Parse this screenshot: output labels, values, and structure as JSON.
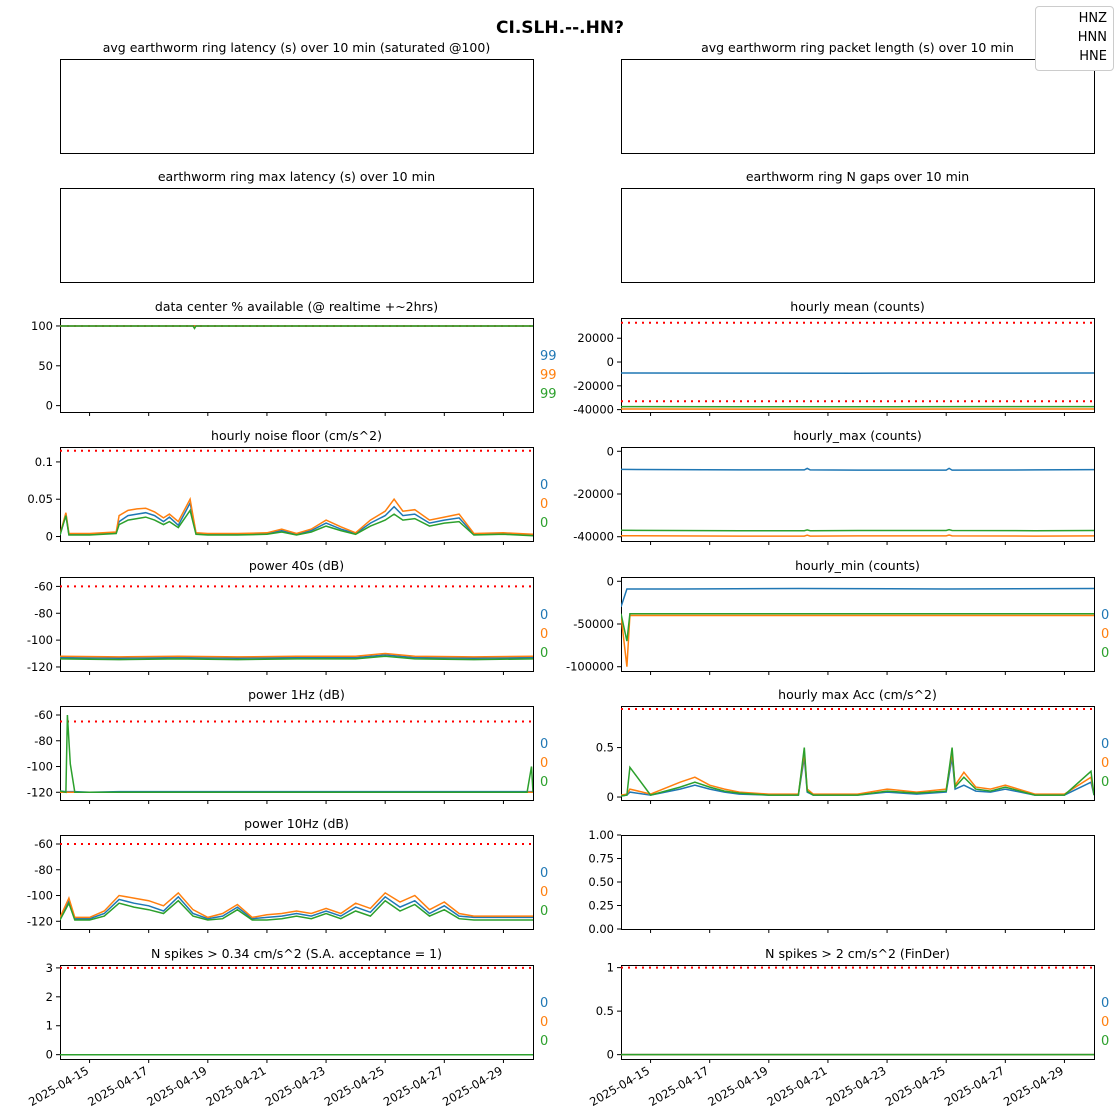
{
  "suptitle": "CI.SLH.--.HN?",
  "legend": [
    "HNZ",
    "HNN",
    "HNE"
  ],
  "colors": {
    "HNZ": "#1f77b4",
    "HNN": "#ff7f0e",
    "HNE": "#2ca02c",
    "threshold": "#ff0000"
  },
  "x_ticks": [
    "2025-04-15",
    "2025-04-17",
    "2025-04-19",
    "2025-04-21",
    "2025-04-23",
    "2025-04-25",
    "2025-04-27",
    "2025-04-29"
  ],
  "x_range": [
    "2025-04-14",
    "2025-04-30"
  ],
  "chart_data": [
    {
      "type": "line",
      "title": "avg earthworm ring latency (s)   over 10 min (saturated @100)",
      "empty": true,
      "series": []
    },
    {
      "type": "line",
      "title": "avg earthworm ring packet length (s)   over 10 min",
      "empty": true,
      "series": []
    },
    {
      "type": "line",
      "title": "earthworm ring max latency (s)   over 10 min",
      "empty": true,
      "series": []
    },
    {
      "type": "line",
      "title": "earthworm ring N gaps   over 10 min",
      "empty": true,
      "series": []
    },
    {
      "type": "line",
      "title": "data center % available (@ realtime +~2hrs)",
      "ylim": [
        -8,
        110
      ],
      "yticks": [
        0,
        50,
        100
      ],
      "thresholds": [
        100
      ],
      "side_labels": [
        "99",
        "99",
        "99"
      ],
      "x": [
        0,
        4.5,
        4.55,
        4.6,
        16
      ],
      "series": [
        {
          "name": "HNZ",
          "values": [
            100,
            100,
            100,
            100,
            100
          ]
        },
        {
          "name": "HNN",
          "values": [
            100,
            100,
            100,
            100,
            100
          ]
        },
        {
          "name": "HNE",
          "values": [
            100,
            100,
            97,
            100,
            100
          ]
        }
      ]
    },
    {
      "type": "line",
      "title": "hourly mean (counts)",
      "ylim": [
        -42000,
        37000
      ],
      "yticks": [
        20000,
        0,
        -20000,
        -40000
      ],
      "thresholds": [
        33000,
        -33000
      ],
      "x": [
        0,
        4,
        8,
        12,
        16
      ],
      "series": [
        {
          "name": "HNZ",
          "values": [
            -9200,
            -9300,
            -9400,
            -9300,
            -9200
          ]
        },
        {
          "name": "HNN",
          "values": [
            -39500,
            -39600,
            -39600,
            -39500,
            -39500
          ]
        },
        {
          "name": "HNE",
          "values": [
            -37500,
            -37600,
            -37600,
            -37500,
            -37500
          ]
        }
      ]
    },
    {
      "type": "line",
      "title": "hourly noise floor (cm/s^2)",
      "ylim": [
        -0.006,
        0.12
      ],
      "yticks": [
        0.1,
        0.05,
        0.0
      ],
      "thresholds": [
        0.115
      ],
      "side_labels": [
        "0",
        "0",
        "0"
      ],
      "x": [
        0,
        0.2,
        0.3,
        1,
        1.9,
        2.0,
        2.3,
        2.6,
        2.9,
        3.2,
        3.5,
        3.7,
        4.0,
        4.4,
        4.6,
        5,
        6,
        7,
        7.5,
        8,
        8.5,
        9,
        9.5,
        10,
        10.5,
        11,
        11.3,
        11.6,
        12,
        12.5,
        13,
        13.5,
        14,
        15,
        16
      ],
      "series": [
        {
          "name": "HNZ",
          "values": [
            0.002,
            0.03,
            0.003,
            0.003,
            0.005,
            0.02,
            0.028,
            0.03,
            0.032,
            0.028,
            0.02,
            0.026,
            0.015,
            0.045,
            0.004,
            0.003,
            0.003,
            0.004,
            0.008,
            0.003,
            0.008,
            0.018,
            0.01,
            0.004,
            0.018,
            0.028,
            0.04,
            0.028,
            0.03,
            0.018,
            0.022,
            0.025,
            0.003,
            0.004,
            0.002
          ]
        },
        {
          "name": "HNN",
          "values": [
            0.003,
            0.032,
            0.004,
            0.004,
            0.006,
            0.028,
            0.035,
            0.037,
            0.038,
            0.033,
            0.025,
            0.03,
            0.02,
            0.05,
            0.005,
            0.004,
            0.004,
            0.005,
            0.01,
            0.004,
            0.01,
            0.022,
            0.013,
            0.005,
            0.022,
            0.034,
            0.05,
            0.034,
            0.036,
            0.022,
            0.026,
            0.03,
            0.004,
            0.005,
            0.003
          ]
        },
        {
          "name": "HNE",
          "values": [
            0.002,
            0.028,
            0.002,
            0.002,
            0.004,
            0.016,
            0.022,
            0.024,
            0.026,
            0.022,
            0.016,
            0.02,
            0.012,
            0.035,
            0.003,
            0.002,
            0.002,
            0.003,
            0.006,
            0.002,
            0.006,
            0.014,
            0.008,
            0.003,
            0.014,
            0.022,
            0.03,
            0.022,
            0.024,
            0.014,
            0.018,
            0.02,
            0.002,
            0.003,
            0.001
          ]
        }
      ]
    },
    {
      "type": "line",
      "title": "hourly_max (counts)",
      "ylim": [
        -42000,
        2000
      ],
      "yticks": [
        0,
        -20000,
        -40000
      ],
      "thresholds": [],
      "x": [
        0,
        4,
        6.2,
        6.3,
        6.4,
        8,
        11,
        11.1,
        11.2,
        14,
        16
      ],
      "series": [
        {
          "name": "HNZ",
          "values": [
            -8500,
            -8700,
            -8700,
            -8000,
            -8700,
            -8800,
            -8800,
            -8000,
            -8800,
            -8700,
            -8600
          ]
        },
        {
          "name": "HNN",
          "values": [
            -39500,
            -39700,
            -39700,
            -39300,
            -39700,
            -39600,
            -39600,
            -39200,
            -39600,
            -39700,
            -39600
          ]
        },
        {
          "name": "HNE",
          "values": [
            -37000,
            -37200,
            -37200,
            -36800,
            -37200,
            -37100,
            -37100,
            -36700,
            -37100,
            -37200,
            -37100
          ]
        }
      ]
    },
    {
      "type": "line",
      "title": "power 40s (dB)",
      "ylim": [
        -123,
        -53
      ],
      "yticks": [
        -60,
        -80,
        -100,
        -120
      ],
      "thresholds": [
        -60
      ],
      "side_labels": [
        "0",
        "0",
        "0"
      ],
      "x": [
        0,
        2,
        4,
        6,
        8,
        10,
        11,
        12,
        14,
        16
      ],
      "series": [
        {
          "name": "HNZ",
          "values": [
            -113,
            -113.5,
            -113,
            -113.5,
            -113,
            -113,
            -111,
            -113,
            -113.5,
            -113
          ]
        },
        {
          "name": "HNN",
          "values": [
            -112,
            -112.5,
            -112,
            -112.5,
            -112,
            -112,
            -110,
            -112,
            -112.5,
            -112
          ]
        },
        {
          "name": "HNE",
          "values": [
            -114,
            -114.5,
            -114,
            -114.5,
            -114,
            -114,
            -112,
            -114,
            -114.5,
            -114
          ]
        }
      ]
    },
    {
      "type": "line",
      "title": "hourly_min (counts)",
      "ylim": [
        -105000,
        5000
      ],
      "yticks": [
        0,
        -50000,
        -100000
      ],
      "thresholds": [],
      "side_labels": [
        "0",
        "0",
        "0"
      ],
      "x": [
        0,
        0.2,
        0.3,
        2,
        6,
        11,
        16
      ],
      "series": [
        {
          "name": "HNZ",
          "values": [
            -30000,
            -9000,
            -9000,
            -9000,
            -8500,
            -9000,
            -8500
          ]
        },
        {
          "name": "HNN",
          "values": [
            -40000,
            -100000,
            -40000,
            -40000,
            -40000,
            -40000,
            -40000
          ]
        },
        {
          "name": "HNE",
          "values": [
            -38000,
            -70000,
            -38000,
            -38000,
            -38000,
            -38000,
            -38000
          ]
        }
      ]
    },
    {
      "type": "line",
      "title": "power 1Hz (dB)",
      "ylim": [
        -126,
        -53
      ],
      "yticks": [
        -60,
        -80,
        -100,
        -120
      ],
      "thresholds": [
        -65
      ],
      "side_labels": [
        "0",
        "0",
        "0"
      ],
      "x": [
        0,
        0.2,
        0.25,
        0.35,
        0.5,
        1,
        2,
        3,
        6,
        8,
        15.8,
        15.95,
        16
      ],
      "series": [
        {
          "name": "HNZ",
          "values": [
            -119,
            -119.5,
            -119.5,
            -119.5,
            -119.5,
            -120,
            -119.5,
            -119.5,
            -119.5,
            -119.5,
            -119.5,
            -119.5,
            -119.5
          ]
        },
        {
          "name": "HNN",
          "values": [
            -120,
            -120,
            -120,
            -120,
            -120,
            -120,
            -120,
            -120,
            -120,
            -120,
            -120,
            -120,
            -120
          ]
        },
        {
          "name": "HNE",
          "values": [
            -119,
            -120,
            -60,
            -98,
            -120,
            -120,
            -120,
            -120,
            -120,
            -120,
            -120,
            -100,
            -120
          ]
        }
      ]
    },
    {
      "type": "line",
      "title": "hourly max Acc (cm/s^2)",
      "ylim": [
        -0.03,
        0.92
      ],
      "yticks": [
        0.5,
        0.0
      ],
      "thresholds": [
        0.89
      ],
      "side_labels": [
        "0",
        "0",
        "0"
      ],
      "x": [
        0,
        0.2,
        0.3,
        1,
        2,
        2.5,
        3,
        3.5,
        4,
        5,
        6,
        6.2,
        6.3,
        6.5,
        7,
        8,
        9,
        10,
        11,
        11.2,
        11.3,
        11.6,
        12,
        12.5,
        13,
        14,
        15,
        15.9,
        16
      ],
      "series": [
        {
          "name": "HNZ",
          "values": [
            0.01,
            0.02,
            0.05,
            0.02,
            0.08,
            0.12,
            0.08,
            0.05,
            0.03,
            0.02,
            0.02,
            0.4,
            0.05,
            0.02,
            0.02,
            0.02,
            0.05,
            0.03,
            0.05,
            0.4,
            0.08,
            0.12,
            0.06,
            0.05,
            0.08,
            0.02,
            0.02,
            0.15,
            0.02
          ]
        },
        {
          "name": "HNN",
          "values": [
            0.02,
            0.03,
            0.08,
            0.03,
            0.15,
            0.2,
            0.12,
            0.08,
            0.05,
            0.03,
            0.03,
            0.45,
            0.08,
            0.03,
            0.03,
            0.03,
            0.08,
            0.05,
            0.08,
            0.45,
            0.12,
            0.25,
            0.1,
            0.08,
            0.12,
            0.03,
            0.03,
            0.2,
            0.03
          ]
        },
        {
          "name": "HNE",
          "values": [
            0.01,
            0.02,
            0.3,
            0.02,
            0.1,
            0.15,
            0.1,
            0.06,
            0.04,
            0.02,
            0.02,
            0.5,
            0.06,
            0.02,
            0.02,
            0.02,
            0.06,
            0.04,
            0.06,
            0.5,
            0.1,
            0.2,
            0.08,
            0.06,
            0.1,
            0.02,
            0.02,
            0.26,
            0.02
          ]
        }
      ]
    },
    {
      "type": "line",
      "title": "power 10Hz (dB)",
      "ylim": [
        -126,
        -53
      ],
      "yticks": [
        -60,
        -80,
        -100,
        -120
      ],
      "thresholds": [
        -60
      ],
      "side_labels": [
        "0",
        "0",
        "0"
      ],
      "x": [
        0,
        0.3,
        0.5,
        1,
        1.5,
        2,
        2.5,
        3,
        3.5,
        4,
        4.5,
        5,
        5.5,
        6,
        6.5,
        7,
        7.5,
        8,
        8.5,
        9,
        9.5,
        10,
        10.5,
        11,
        11.5,
        12,
        12.5,
        13,
        13.5,
        14,
        15,
        16
      ],
      "series": [
        {
          "name": "HNZ",
          "values": [
            -118,
            -104,
            -118,
            -118,
            -114,
            -103,
            -106,
            -108,
            -112,
            -101,
            -114,
            -118,
            -116,
            -109,
            -118,
            -117,
            -116,
            -114,
            -116,
            -112,
            -116,
            -109,
            -113,
            -101,
            -109,
            -104,
            -114,
            -108,
            -116,
            -117,
            -117,
            -117
          ]
        },
        {
          "name": "HNN",
          "values": [
            -117,
            -102,
            -117,
            -117,
            -112,
            -100,
            -102,
            -104,
            -108,
            -98,
            -111,
            -117,
            -114,
            -107,
            -117,
            -115,
            -114,
            -112,
            -114,
            -110,
            -114,
            -106,
            -110,
            -98,
            -105,
            -100,
            -111,
            -105,
            -114,
            -116,
            -116,
            -116
          ]
        },
        {
          "name": "HNE",
          "values": [
            -119,
            -106,
            -119,
            -119,
            -116,
            -106,
            -109,
            -111,
            -114,
            -104,
            -116,
            -119,
            -118,
            -111,
            -119,
            -119,
            -118,
            -116,
            -118,
            -114,
            -118,
            -112,
            -116,
            -104,
            -112,
            -107,
            -116,
            -111,
            -118,
            -119,
            -119,
            -119
          ]
        }
      ]
    },
    {
      "type": "line",
      "title": "",
      "ylim": [
        0,
        1
      ],
      "yticks": [
        1.0,
        0.75,
        0.5,
        0.25,
        0.0
      ],
      "tick_labels": [
        "1.00",
        "0.75",
        "0.50",
        "0.25",
        "0.00"
      ],
      "empty": true,
      "series": []
    },
    {
      "type": "line",
      "title": "N spikes > 0.34 cm/s^2 (S.A. acceptance = 1)",
      "ylim": [
        -0.15,
        3.1
      ],
      "yticks": [
        3,
        2,
        1,
        0
      ],
      "thresholds": [
        3
      ],
      "side_labels": [
        "0",
        "0",
        "0"
      ],
      "x": [
        0,
        16
      ],
      "series": [
        {
          "name": "HNZ",
          "values": [
            0,
            0
          ]
        },
        {
          "name": "HNN",
          "values": [
            0,
            0
          ]
        },
        {
          "name": "HNE",
          "values": [
            0,
            0
          ]
        }
      ]
    },
    {
      "type": "line",
      "title": "N spikes > 2 cm/s^2 (FinDer)",
      "ylim": [
        -0.05,
        1.03
      ],
      "yticks": [
        1.0,
        0.5,
        0.0
      ],
      "thresholds": [
        1.0
      ],
      "side_labels": [
        "0",
        "0",
        "0"
      ],
      "x": [
        0,
        16
      ],
      "series": [
        {
          "name": "HNZ",
          "values": [
            0,
            0
          ]
        },
        {
          "name": "HNN",
          "values": [
            0,
            0
          ]
        },
        {
          "name": "HNE",
          "values": [
            0,
            0
          ]
        }
      ]
    }
  ]
}
